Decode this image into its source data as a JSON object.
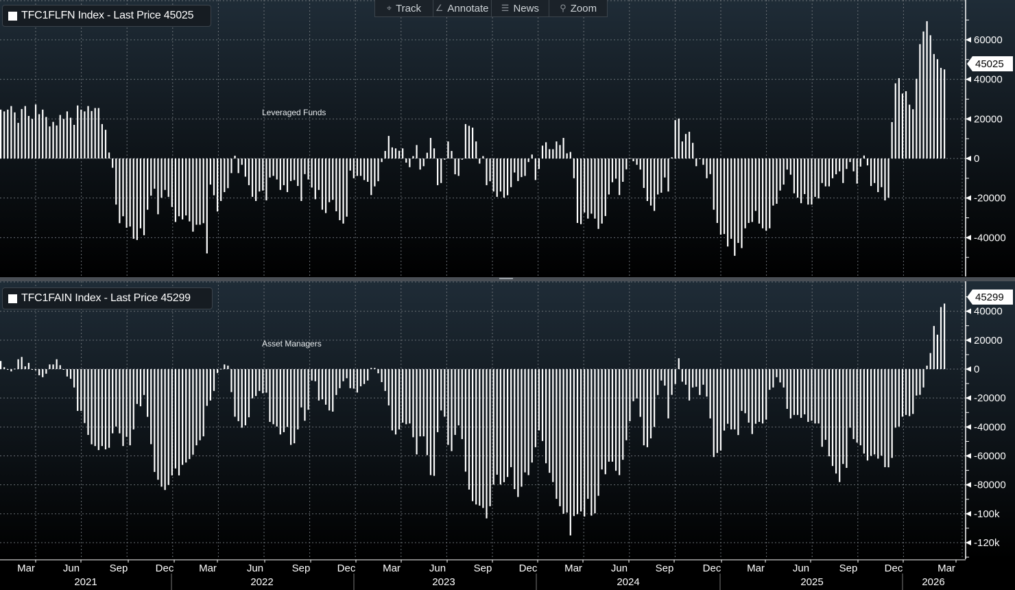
{
  "toolbar": {
    "items": [
      {
        "label": "Track",
        "icon": "crosshair-icon"
      },
      {
        "label": "Annotate",
        "icon": "pencil-icon"
      },
      {
        "label": "News",
        "icon": "news-icon"
      },
      {
        "label": "Zoom",
        "icon": "magnifier-icon"
      }
    ]
  },
  "chart_data": [
    {
      "type": "bar",
      "legend": "TFC1FLFN Index - Last Price 45025",
      "annotation": "Leveraged Funds",
      "last_price_tag": "45025",
      "frequency": "weekly",
      "bar_color": "#ffffff",
      "ylim": [
        -60000,
        80000
      ],
      "y_ticks": [
        "60000",
        "40000",
        "20000",
        "0",
        "-20000",
        "-40000"
      ],
      "y_tick_values": [
        60000,
        40000,
        20000,
        0,
        -20000,
        -40000
      ],
      "grid": true,
      "values": [
        24700,
        23800,
        24700,
        26500,
        23300,
        18000,
        25000,
        26500,
        21500,
        20000,
        27300,
        22400,
        24700,
        21000,
        16200,
        18500,
        16700,
        22000,
        20000,
        23800,
        20600,
        17000,
        26800,
        24700,
        23800,
        26500,
        24000,
        25500,
        25500,
        17400,
        14500,
        3000,
        -4700,
        -23300,
        -32700,
        -29200,
        -35000,
        -34400,
        -40600,
        -41200,
        -35300,
        -38800,
        -25900,
        -18800,
        -15300,
        -28200,
        -19800,
        -15900,
        -19400,
        -24500,
        -32100,
        -29200,
        -30800,
        -28800,
        -31800,
        -37000,
        -33500,
        -33500,
        -32700,
        -48000,
        -13200,
        -18600,
        -26800,
        -21500,
        -17000,
        -15000,
        -7400,
        1400,
        -7400,
        -3200,
        -9200,
        -13500,
        -19400,
        -21500,
        -16700,
        -16200,
        -21200,
        -9600,
        -8800,
        -10600,
        -15900,
        -13500,
        -17000,
        -11400,
        -10900,
        -13900,
        -21500,
        -7900,
        -10600,
        -14700,
        -20600,
        -15900,
        -25900,
        -27600,
        -22100,
        -20900,
        -26700,
        -31200,
        -32900,
        -29400,
        -6100,
        -10000,
        -8800,
        -8800,
        -10900,
        -11800,
        -18500,
        -14100,
        -11500,
        -1800,
        3800,
        11400,
        5600,
        5100,
        3900,
        5100,
        -2100,
        -4400,
        1200,
        6800,
        -5600,
        -3900,
        2900,
        10400,
        5100,
        -13500,
        -12400,
        -600,
        8600,
        3800,
        -8000,
        -8800,
        -600,
        17400,
        16500,
        15600,
        8600,
        -2600,
        1200,
        -13500,
        -11500,
        -16700,
        -19400,
        -16700,
        -19800,
        -18600,
        -14500,
        -7100,
        -11400,
        -9400,
        -8800,
        -1800,
        2000,
        -10900,
        -5300,
        6500,
        8200,
        4700,
        4700,
        8600,
        6800,
        10400,
        2600,
        3300,
        -10000,
        -32600,
        -33200,
        -27300,
        -30400,
        -27900,
        -30400,
        -35600,
        -32900,
        -29100,
        -18200,
        -12000,
        -10200,
        -18500,
        -11800,
        -5500,
        200,
        -1400,
        -3200,
        -5600,
        -14900,
        -21500,
        -23800,
        -26500,
        -18200,
        -17300,
        -9600,
        -16700,
        600,
        19400,
        20200,
        8600,
        12400,
        13500,
        7900,
        -3900,
        -200,
        -3200,
        -10000,
        -7900,
        -25900,
        -32600,
        -38500,
        -38200,
        -44500,
        -40600,
        -49200,
        -42700,
        -45300,
        -35300,
        -32600,
        -32100,
        -26500,
        -32900,
        -35300,
        -36500,
        -35300,
        -23800,
        -22900,
        -16200,
        -13200,
        -5600,
        -8200,
        -17600,
        -19800,
        -22600,
        -18000,
        -23300,
        -23300,
        -19400,
        -20200,
        -12400,
        -14100,
        -14100,
        -10000,
        -8000,
        -6500,
        -12400,
        -5300,
        -1800,
        -6500,
        -12700,
        -4100,
        1500,
        -3500,
        -13900,
        -12400,
        -17000,
        -14500,
        -21200,
        -19800,
        18400,
        38000,
        40600,
        32800,
        34000,
        27200,
        24900,
        40300,
        57800,
        64200,
        69400,
        62300,
        52800,
        50200,
        45800,
        45025
      ]
    },
    {
      "type": "bar",
      "legend": "TFC1FAIN Index - Last Price 45299",
      "annotation": "Asset Managers",
      "last_price_tag": "45299",
      "frequency": "weekly",
      "bar_color": "#ffffff",
      "ylim": [
        -132000,
        61000
      ],
      "y_ticks": [
        "40000",
        "20000",
        "0",
        "-20000",
        "-40000",
        "-60000",
        "-80000",
        "-100k",
        "-120k"
      ],
      "y_tick_values": [
        40000,
        20000,
        0,
        -20000,
        -40000,
        -60000,
        -80000,
        -100000,
        -120000
      ],
      "grid": true,
      "values": [
        5600,
        1300,
        -500,
        -1600,
        300,
        6800,
        8400,
        1900,
        4300,
        -300,
        -800,
        -4300,
        -5600,
        -3200,
        3200,
        3200,
        6800,
        2700,
        -200,
        -5100,
        -6700,
        -12700,
        -28900,
        -28900,
        -37300,
        -45500,
        -52000,
        -53200,
        -56000,
        -53200,
        -55500,
        -54400,
        -44400,
        -39700,
        -44400,
        -53200,
        -46800,
        -52700,
        -41700,
        -24100,
        -25700,
        -17900,
        -33000,
        -51900,
        -71100,
        -76500,
        -81300,
        -83600,
        -80100,
        -73500,
        -68700,
        -73500,
        -66200,
        -64600,
        -62200,
        -59200,
        -52700,
        -49200,
        -46500,
        -25400,
        -21700,
        -15100,
        -2700,
        200,
        3200,
        2400,
        -15900,
        -32900,
        -36000,
        -40500,
        -38900,
        -33300,
        -20200,
        -18600,
        -15100,
        -16700,
        -16300,
        -36500,
        -38100,
        -39700,
        -45200,
        -43600,
        -40000,
        -52400,
        -51300,
        -41700,
        -26500,
        -35700,
        -28100,
        -7900,
        -8400,
        -21700,
        -20900,
        -24600,
        -28600,
        -29400,
        -17900,
        -13200,
        -8400,
        -6300,
        -13200,
        -13500,
        -16200,
        -11900,
        -10300,
        -7900,
        800,
        800,
        -2900,
        -9000,
        -15100,
        -25100,
        -42400,
        -45200,
        -41700,
        -37000,
        -38100,
        -37600,
        -47100,
        -59000,
        -46500,
        -46500,
        -59500,
        -73300,
        -73800,
        -43600,
        -28600,
        -32900,
        -52400,
        -56700,
        -45500,
        -38900,
        -48400,
        -70900,
        -83300,
        -91300,
        -93600,
        -94400,
        -96000,
        -103200,
        -94800,
        -79800,
        -73000,
        -79800,
        -78200,
        -74600,
        -67800,
        -83000,
        -88400,
        -81300,
        -71400,
        -73300,
        -64600,
        -54000,
        -42400,
        -49700,
        -65100,
        -71700,
        -78100,
        -89700,
        -94800,
        -100000,
        -99200,
        -115000,
        -101600,
        -100300,
        -98400,
        -101900,
        -89700,
        -101300,
        -99700,
        -87600,
        -69400,
        -72700,
        -64000,
        -64000,
        -70300,
        -73300,
        -62700,
        -49200,
        -36000,
        -22200,
        -20300,
        -33000,
        -52700,
        -54000,
        -47900,
        -40000,
        -17900,
        -7900,
        -11400,
        -34100,
        -17800,
        -10300,
        7500,
        -8700,
        -10800,
        -21700,
        -12700,
        -12200,
        -17900,
        -10800,
        -19000,
        -34100,
        -60800,
        -58000,
        -56300,
        -42500,
        -37800,
        -41700,
        -41700,
        -45600,
        -28900,
        -30500,
        -37000,
        -44900,
        -37800,
        -36500,
        -37600,
        -34900,
        -14300,
        -12700,
        -5600,
        -9200,
        -12700,
        -27500,
        -34100,
        -31700,
        -31700,
        -33700,
        -31300,
        -36500,
        -35700,
        -37600,
        -37600,
        -53700,
        -48900,
        -60300,
        -67000,
        -72200,
        -78100,
        -65600,
        -68300,
        -40500,
        -48400,
        -50800,
        -52700,
        -58400,
        -63200,
        -60000,
        -59000,
        -61900,
        -59800,
        -67800,
        -67900,
        -61400,
        -40500,
        -39700,
        -32900,
        -31700,
        -32500,
        -31000,
        -18300,
        -17800,
        -12700,
        2400,
        11100,
        29800,
        23800,
        42900,
        45299
      ]
    }
  ],
  "x_axis": {
    "month_ticks": [
      "Mar",
      "Jun",
      "Sep",
      "Dec",
      "Mar",
      "Jun",
      "Sep",
      "Dec",
      "Mar",
      "Jun",
      "Sep",
      "Dec",
      "Mar",
      "Jun",
      "Sep",
      "Dec",
      "Mar",
      "Jun",
      "Sep",
      "Dec",
      "Mar"
    ],
    "years": [
      "2021",
      "2022",
      "2023",
      "2024",
      "2025",
      "2026"
    ]
  }
}
